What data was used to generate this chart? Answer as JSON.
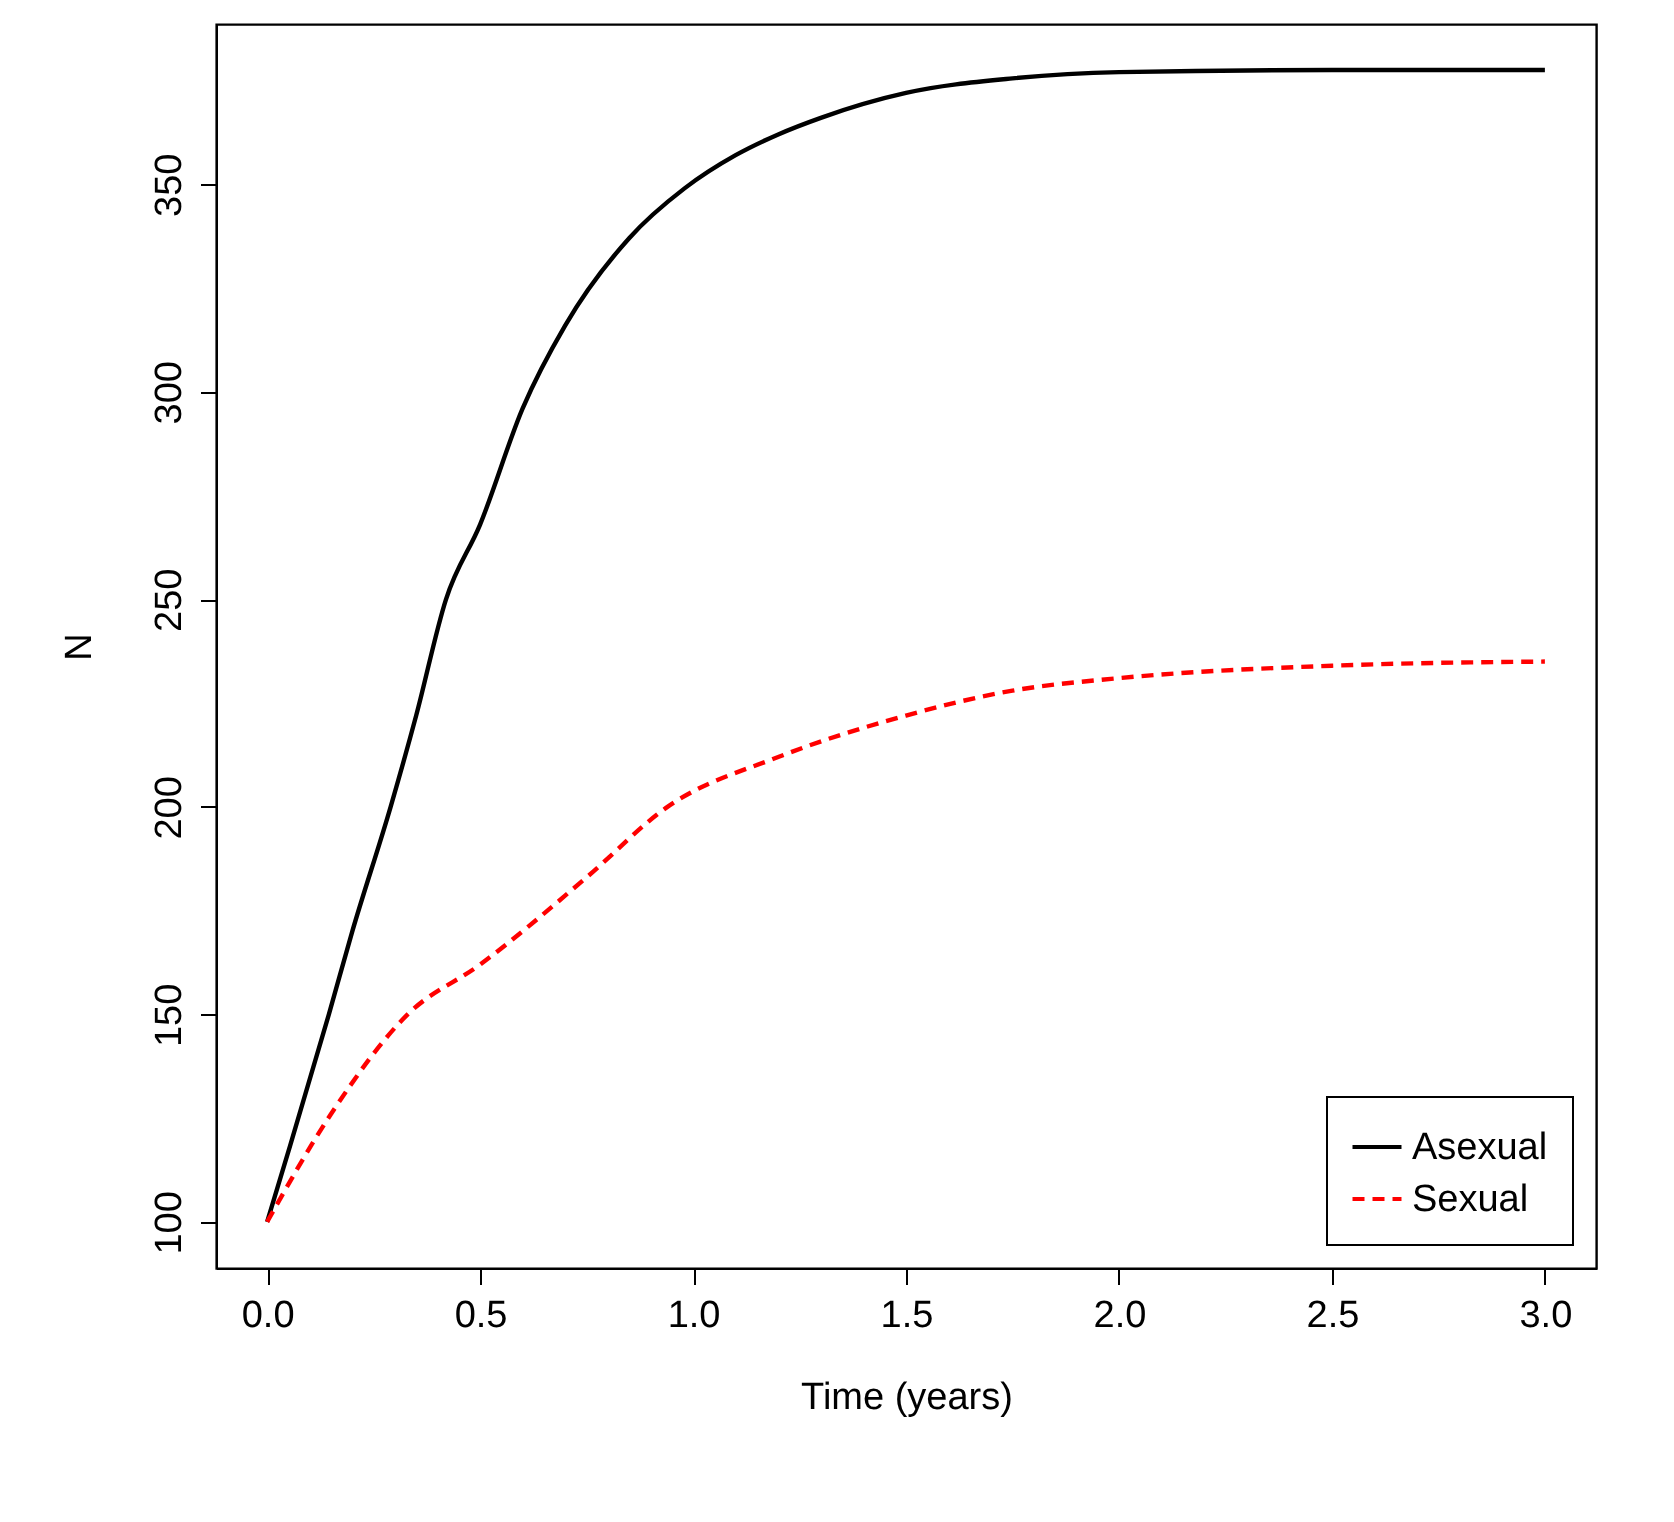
{
  "chart_data": {
    "type": "line",
    "xlabel": "Time (years)",
    "ylabel": "N",
    "xlim": [
      -0.12,
      3.12
    ],
    "ylim": [
      88.9,
      388.6
    ],
    "xticks": [
      {
        "value": 0,
        "label": "0.0"
      },
      {
        "value": 0.5,
        "label": "0.5"
      },
      {
        "value": 1,
        "label": "1.0"
      },
      {
        "value": 1.5,
        "label": "1.5"
      },
      {
        "value": 2,
        "label": "2.0"
      },
      {
        "value": 2.5,
        "label": "2.5"
      },
      {
        "value": 3,
        "label": "3.0"
      }
    ],
    "yticks": [
      100,
      150,
      200,
      250,
      300,
      350
    ],
    "grid": false,
    "legend": "bottom right",
    "marker": "none",
    "series": [
      {
        "name": "Asexual",
        "color": "#000000",
        "line_style": "solid",
        "x": [
          0,
          0.05,
          0.145,
          0.2,
          0.29,
          0.35,
          0.42,
          0.5,
          0.6,
          0.7,
          0.85,
          0.98,
          1.1,
          1.2,
          1.3,
          1.5,
          1.75,
          2.0,
          2.5,
          3.0
        ],
        "values": [
          100,
          117,
          150,
          170,
          200,
          222,
          250,
          268,
          296,
          316,
          337,
          349,
          357,
          362,
          366,
          372,
          375.5,
          377,
          377.5,
          377.5
        ]
      },
      {
        "name": "Sexual",
        "color": "#ff0000",
        "line_style": "dashed",
        "x": [
          0,
          0.15,
          0.33,
          0.5,
          0.75,
          0.94,
          1.2,
          1.5,
          1.75,
          2.0,
          2.5,
          3.0
        ],
        "values": [
          100,
          126,
          150,
          162,
          183,
          200,
          212,
          222,
          228,
          231,
          234,
          235
        ]
      }
    ]
  }
}
